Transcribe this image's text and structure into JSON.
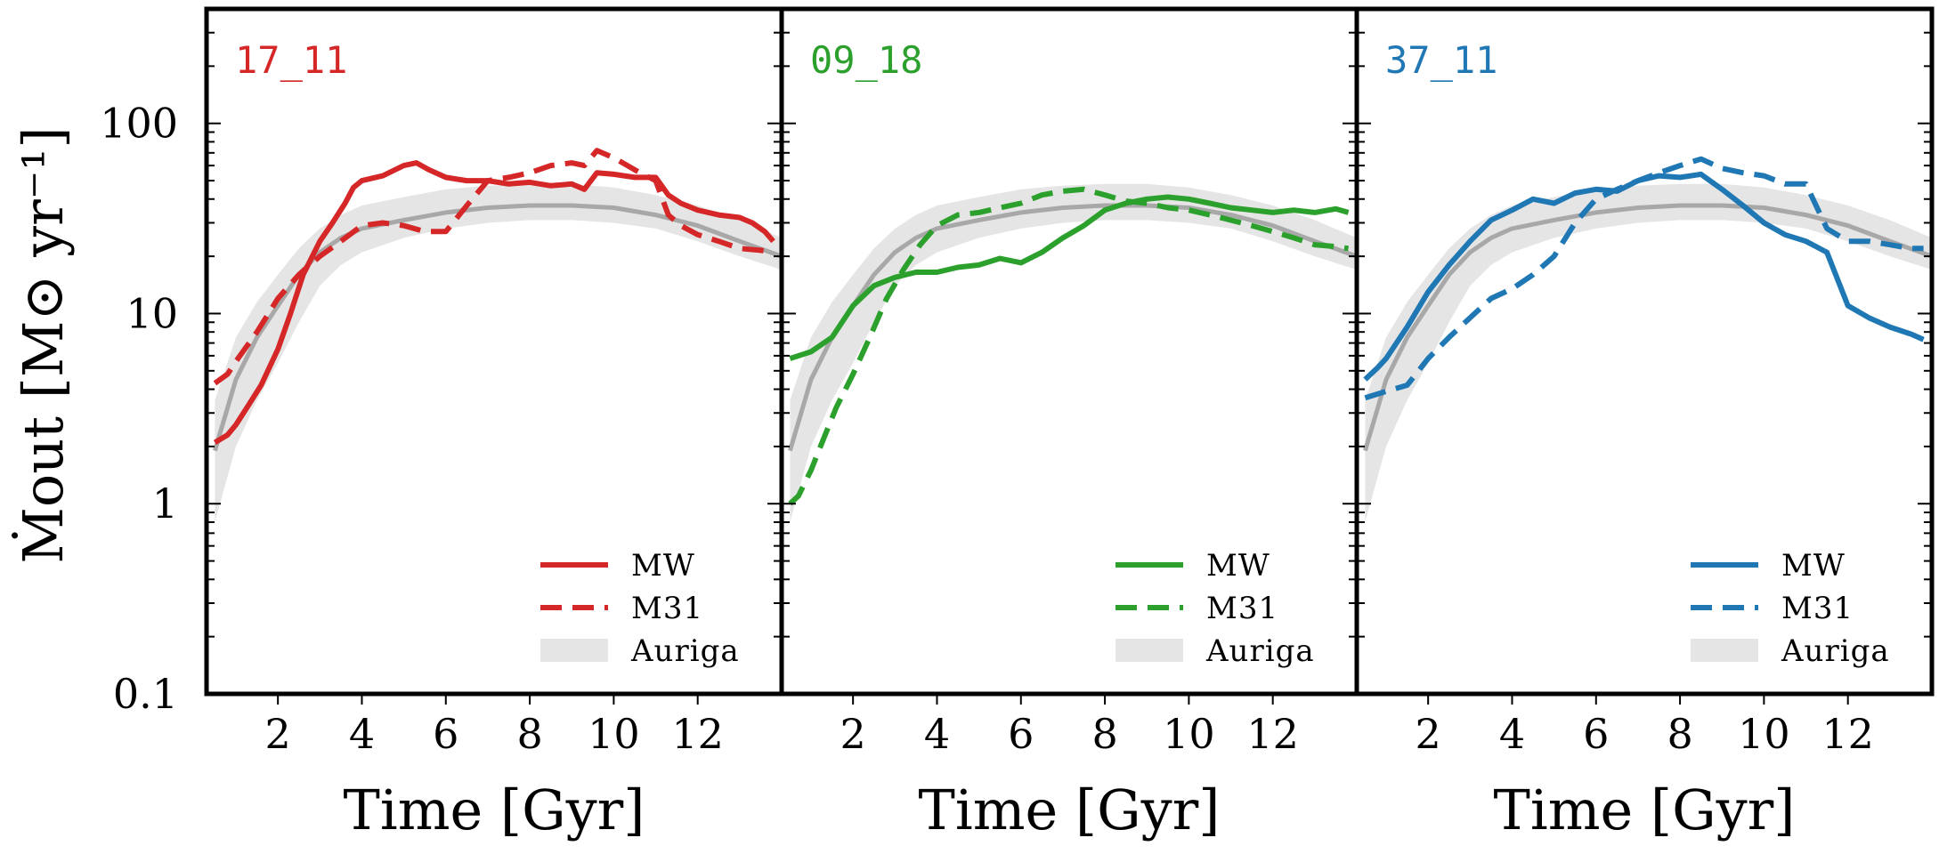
{
  "chart_data": {
    "type": "line",
    "ylabel": "Ṁout [M⊙ yr⁻¹]",
    "xlabel": "Time [Gyr]",
    "yscale": "log",
    "ylim": [
      0.1,
      400
    ],
    "xlim": [
      0.3,
      14.0
    ],
    "xticks": [
      2,
      4,
      6,
      8,
      10,
      12
    ],
    "xtick_labels": [
      "2",
      "4",
      "6",
      "8",
      "10",
      "12"
    ],
    "yticks": [
      0.1,
      1,
      10,
      100
    ],
    "ytick_labels": [
      "0.1",
      "1",
      "10",
      "100"
    ],
    "legend": {
      "placement": "lower-right",
      "entries": [
        "MW",
        "M31",
        "Auriga"
      ]
    },
    "auriga": {
      "color": "#e5e5e5",
      "median_color": "#a8a8a8",
      "x": [
        0.5,
        1,
        1.5,
        2,
        2.5,
        3,
        3.5,
        4,
        5,
        6,
        7,
        8,
        9,
        10,
        11,
        12,
        13,
        14
      ],
      "median": [
        1.9,
        4.5,
        7.5,
        11,
        16,
        21,
        25,
        28,
        31,
        34,
        36,
        37,
        37,
        36,
        33,
        29,
        24,
        20
      ],
      "low": [
        0.8,
        2.0,
        3.5,
        5.5,
        9,
        14,
        18,
        21,
        25,
        28,
        30,
        31,
        31,
        30,
        28,
        24,
        20,
        17
      ],
      "high": [
        3.5,
        7.5,
        11.5,
        16,
        22,
        28,
        33,
        37,
        41,
        45,
        47,
        48,
        48,
        46,
        42,
        37,
        31,
        25
      ]
    },
    "panels": [
      {
        "label": "17_11",
        "color": "#d62728",
        "series": [
          {
            "name": "MW",
            "style": "solid",
            "x": [
              0.5,
              0.8,
              1.0,
              1.3,
              1.6,
              2.0,
              2.3,
              2.6,
              3.0,
              3.3,
              3.6,
              3.8,
              4.0,
              4.5,
              5.0,
              5.3,
              5.6,
              6.0,
              6.5,
              7.0,
              7.5,
              8.0,
              8.5,
              9.0,
              9.3,
              9.6,
              10.0,
              10.5,
              11.0,
              11.3,
              11.6,
              12.0,
              12.5,
              13.0,
              13.3,
              13.6,
              13.8
            ],
            "y": [
              2.1,
              2.3,
              2.6,
              3.3,
              4.2,
              6.5,
              10,
              16,
              24,
              30,
              38,
              46,
              50,
              53,
              60,
              62,
              57,
              52,
              50,
              50,
              48,
              49,
              47,
              48,
              45,
              55,
              54,
              52,
              52,
              42,
              38,
              35,
              33,
              32,
              30,
              27,
              24
            ]
          },
          {
            "name": "M31",
            "style": "dashed",
            "x": [
              0.5,
              0.8,
              1.0,
              1.5,
              2.0,
              2.5,
              3.0,
              3.5,
              4.0,
              4.5,
              5.0,
              5.5,
              6.0,
              6.5,
              7.0,
              7.5,
              8.0,
              8.5,
              9.0,
              9.3,
              9.6,
              10.0,
              10.5,
              11.0,
              11.3,
              11.6,
              12.0,
              12.5,
              13.0,
              13.5,
              13.8
            ],
            "y": [
              4.3,
              4.8,
              5.6,
              8,
              12,
              16,
              20,
              24,
              29,
              30,
              29,
              27,
              27,
              37,
              50,
              52,
              55,
              60,
              62,
              60,
              72,
              66,
              57,
              50,
              33,
              29,
              26,
              24,
              22,
              21.5,
              21
            ]
          }
        ]
      },
      {
        "label": "09_18",
        "color": "#2ca02c",
        "series": [
          {
            "name": "MW",
            "style": "solid",
            "x": [
              0.5,
              1.0,
              1.5,
              2.0,
              2.5,
              3.0,
              3.5,
              4.0,
              4.5,
              5.0,
              5.5,
              6.0,
              6.5,
              7.0,
              7.5,
              8.0,
              8.5,
              9.0,
              9.5,
              10.0,
              10.5,
              11.0,
              11.5,
              12.0,
              12.5,
              13.0,
              13.5,
              13.8
            ],
            "y": [
              5.8,
              6.3,
              7.5,
              11,
              14,
              15.5,
              16.5,
              16.5,
              17.5,
              18,
              19.5,
              18.5,
              21,
              25,
              29,
              35,
              38,
              40,
              41,
              40,
              38,
              36,
              35,
              34,
              35,
              34,
              35.5,
              34
            ]
          },
          {
            "name": "M31",
            "style": "dashed",
            "x": [
              0.5,
              0.7,
              1.0,
              1.3,
              1.6,
              2.0,
              2.4,
              2.8,
              3.2,
              3.6,
              4.0,
              4.5,
              5.0,
              5.5,
              6.0,
              6.5,
              7.0,
              7.5,
              8.0,
              8.5,
              9.0,
              9.5,
              10.0,
              10.5,
              11.0,
              11.5,
              12.0,
              12.5,
              13.0,
              13.5,
              13.8
            ],
            "y": [
              1.0,
              1.1,
              1.5,
              2.2,
              3.2,
              4.8,
              7.5,
              12,
              17,
              23,
              29,
              33,
              34,
              36,
              38,
              42,
              44,
              45,
              42,
              39,
              38,
              36,
              35,
              33,
              31,
              29,
              27,
              25,
              23,
              22.5,
              22
            ]
          }
        ]
      },
      {
        "label": "37_11",
        "color": "#1f77b4",
        "series": [
          {
            "name": "MW",
            "style": "solid",
            "x": [
              0.5,
              0.8,
              1.0,
              1.5,
              2.0,
              2.5,
              3.0,
              3.5,
              4.0,
              4.5,
              5.0,
              5.5,
              6.0,
              6.5,
              7.0,
              7.5,
              8.0,
              8.5,
              9.0,
              9.5,
              10.0,
              10.5,
              11.0,
              11.5,
              12.0,
              12.5,
              13.0,
              13.5,
              13.8
            ],
            "y": [
              4.5,
              5.2,
              5.8,
              8.5,
              13,
              18,
              24,
              31,
              35,
              40,
              38,
              43,
              45,
              44,
              50,
              53,
              52,
              54,
              45,
              37,
              30,
              26,
              24,
              21,
              11,
              9.5,
              8.5,
              7.8,
              7.3
            ]
          },
          {
            "name": "M31",
            "style": "dashed",
            "x": [
              0.5,
              1.0,
              1.5,
              2.0,
              2.5,
              3.0,
              3.5,
              4.0,
              4.5,
              5.0,
              5.5,
              6.0,
              6.5,
              7.0,
              7.5,
              8.0,
              8.5,
              9.0,
              9.5,
              10.0,
              10.5,
              11.0,
              11.5,
              12.0,
              12.5,
              13.0,
              13.5,
              13.8
            ],
            "y": [
              3.6,
              3.9,
              4.2,
              5.8,
              7.5,
              9.5,
              12,
              13.5,
              16,
              20,
              30,
              40,
              45,
              50,
              55,
              60,
              65,
              58,
              55,
              53,
              48,
              48,
              28,
              24,
              24,
              23,
              22,
              22
            ]
          }
        ]
      }
    ]
  }
}
